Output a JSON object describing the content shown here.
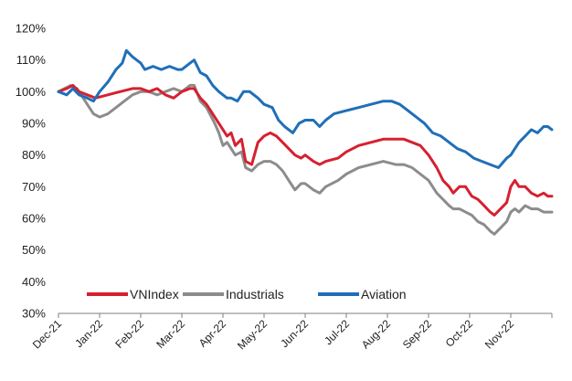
{
  "chart_data": {
    "type": "line",
    "title": "",
    "xlabel": "",
    "ylabel": "",
    "ylim": [
      30,
      120
    ],
    "y_unit": "%",
    "y_ticks": [
      "30%",
      "40%",
      "50%",
      "60%",
      "70%",
      "80%",
      "90%",
      "100%",
      "110%",
      "120%"
    ],
    "y_tick_values": [
      30,
      40,
      50,
      60,
      70,
      80,
      90,
      100,
      110,
      120
    ],
    "x_ticks": [
      "Dec-21",
      "Jan-22",
      "Feb-22",
      "Mar-22",
      "Apr-22",
      "May-22",
      "Jun-22",
      "Jul-22",
      "Aug-22",
      "Sep-22",
      "Oct-22",
      "Nov-22"
    ],
    "x_tick_values": [
      0,
      1,
      2,
      3,
      4,
      5,
      6,
      7,
      8,
      9,
      10,
      11
    ],
    "xlim": [
      0,
      12
    ],
    "grid": false,
    "legend_position": "bottom-left",
    "x_axis_note": "x values in months after Dec-21",
    "series": [
      {
        "name": "VNIndex",
        "color": "#d62030",
        "points": [
          [
            0.0,
            100
          ],
          [
            0.2,
            101
          ],
          [
            0.35,
            102
          ],
          [
            0.5,
            100
          ],
          [
            0.7,
            99
          ],
          [
            0.9,
            98
          ],
          [
            1.2,
            99
          ],
          [
            1.5,
            100
          ],
          [
            1.8,
            101
          ],
          [
            2.0,
            101
          ],
          [
            2.2,
            100
          ],
          [
            2.4,
            101
          ],
          [
            2.6,
            99
          ],
          [
            2.8,
            98
          ],
          [
            3.0,
            100
          ],
          [
            3.2,
            101
          ],
          [
            3.3,
            101
          ],
          [
            3.45,
            98
          ],
          [
            3.6,
            96
          ],
          [
            3.8,
            92
          ],
          [
            3.9,
            90
          ],
          [
            4.0,
            88
          ],
          [
            4.1,
            86
          ],
          [
            4.2,
            87
          ],
          [
            4.3,
            83
          ],
          [
            4.45,
            85
          ],
          [
            4.55,
            78
          ],
          [
            4.7,
            77
          ],
          [
            4.85,
            84
          ],
          [
            5.0,
            86
          ],
          [
            5.15,
            87
          ],
          [
            5.3,
            86
          ],
          [
            5.45,
            84
          ],
          [
            5.6,
            82
          ],
          [
            5.75,
            80
          ],
          [
            5.9,
            79
          ],
          [
            6.0,
            80
          ],
          [
            6.2,
            78
          ],
          [
            6.35,
            77
          ],
          [
            6.5,
            78
          ],
          [
            6.8,
            79
          ],
          [
            7.0,
            81
          ],
          [
            7.3,
            83
          ],
          [
            7.6,
            84
          ],
          [
            7.9,
            85
          ],
          [
            8.2,
            85
          ],
          [
            8.4,
            85
          ],
          [
            8.6,
            84
          ],
          [
            8.8,
            83
          ],
          [
            9.0,
            80
          ],
          [
            9.2,
            76
          ],
          [
            9.35,
            72
          ],
          [
            9.5,
            70
          ],
          [
            9.6,
            68
          ],
          [
            9.75,
            70
          ],
          [
            9.9,
            70
          ],
          [
            10.05,
            67
          ],
          [
            10.2,
            66
          ],
          [
            10.35,
            64
          ],
          [
            10.5,
            62
          ],
          [
            10.6,
            61
          ],
          [
            10.75,
            63
          ],
          [
            10.9,
            65
          ],
          [
            11.0,
            70
          ],
          [
            11.1,
            72
          ],
          [
            11.2,
            70
          ],
          [
            11.35,
            70
          ],
          [
            11.5,
            68
          ],
          [
            11.65,
            67
          ],
          [
            11.8,
            68
          ],
          [
            11.9,
            67
          ],
          [
            12.0,
            67
          ]
        ]
      },
      {
        "name": "Industrials",
        "color": "#8c8c8c",
        "points": [
          [
            0.0,
            100
          ],
          [
            0.15,
            101
          ],
          [
            0.3,
            102
          ],
          [
            0.45,
            101
          ],
          [
            0.55,
            99
          ],
          [
            0.7,
            96
          ],
          [
            0.85,
            93
          ],
          [
            1.0,
            92
          ],
          [
            1.2,
            93
          ],
          [
            1.4,
            95
          ],
          [
            1.6,
            97
          ],
          [
            1.8,
            99
          ],
          [
            2.0,
            100
          ],
          [
            2.2,
            100
          ],
          [
            2.4,
            99
          ],
          [
            2.6,
            100
          ],
          [
            2.8,
            101
          ],
          [
            3.0,
            100
          ],
          [
            3.2,
            102
          ],
          [
            3.3,
            102
          ],
          [
            3.45,
            97
          ],
          [
            3.6,
            95
          ],
          [
            3.8,
            90
          ],
          [
            3.9,
            87
          ],
          [
            4.0,
            83
          ],
          [
            4.1,
            84
          ],
          [
            4.2,
            82
          ],
          [
            4.3,
            80
          ],
          [
            4.45,
            81
          ],
          [
            4.55,
            76
          ],
          [
            4.7,
            75
          ],
          [
            4.85,
            77
          ],
          [
            5.0,
            78
          ],
          [
            5.15,
            78
          ],
          [
            5.3,
            77
          ],
          [
            5.45,
            75
          ],
          [
            5.6,
            72
          ],
          [
            5.75,
            69
          ],
          [
            5.9,
            71
          ],
          [
            6.0,
            71
          ],
          [
            6.2,
            69
          ],
          [
            6.35,
            68
          ],
          [
            6.5,
            70
          ],
          [
            6.8,
            72
          ],
          [
            7.0,
            74
          ],
          [
            7.3,
            76
          ],
          [
            7.6,
            77
          ],
          [
            7.9,
            78
          ],
          [
            8.2,
            77
          ],
          [
            8.4,
            77
          ],
          [
            8.6,
            76
          ],
          [
            8.8,
            74
          ],
          [
            9.0,
            72
          ],
          [
            9.2,
            68
          ],
          [
            9.35,
            66
          ],
          [
            9.5,
            64
          ],
          [
            9.6,
            63
          ],
          [
            9.75,
            63
          ],
          [
            9.9,
            62
          ],
          [
            10.05,
            61
          ],
          [
            10.2,
            59
          ],
          [
            10.35,
            58
          ],
          [
            10.5,
            56
          ],
          [
            10.6,
            55
          ],
          [
            10.75,
            57
          ],
          [
            10.9,
            59
          ],
          [
            11.0,
            62
          ],
          [
            11.1,
            63
          ],
          [
            11.2,
            62
          ],
          [
            11.35,
            64
          ],
          [
            11.5,
            63
          ],
          [
            11.65,
            63
          ],
          [
            11.8,
            62
          ],
          [
            11.9,
            62
          ],
          [
            12.0,
            62
          ]
        ]
      },
      {
        "name": "Aviation",
        "color": "#1f6fb8",
        "points": [
          [
            0.0,
            100
          ],
          [
            0.2,
            99
          ],
          [
            0.35,
            101
          ],
          [
            0.5,
            99
          ],
          [
            0.7,
            98
          ],
          [
            0.85,
            97
          ],
          [
            1.0,
            100
          ],
          [
            1.2,
            103
          ],
          [
            1.4,
            107
          ],
          [
            1.55,
            109
          ],
          [
            1.65,
            113
          ],
          [
            1.8,
            111
          ],
          [
            2.0,
            109
          ],
          [
            2.1,
            107
          ],
          [
            2.3,
            108
          ],
          [
            2.5,
            107
          ],
          [
            2.7,
            108
          ],
          [
            2.9,
            107
          ],
          [
            3.0,
            107
          ],
          [
            3.2,
            109
          ],
          [
            3.3,
            110
          ],
          [
            3.45,
            106
          ],
          [
            3.6,
            105
          ],
          [
            3.75,
            102
          ],
          [
            3.9,
            100
          ],
          [
            4.0,
            99
          ],
          [
            4.1,
            98
          ],
          [
            4.2,
            98
          ],
          [
            4.35,
            97
          ],
          [
            4.5,
            100
          ],
          [
            4.65,
            100
          ],
          [
            4.85,
            98
          ],
          [
            5.0,
            96
          ],
          [
            5.2,
            95
          ],
          [
            5.35,
            91
          ],
          [
            5.5,
            89
          ],
          [
            5.7,
            87
          ],
          [
            5.85,
            90
          ],
          [
            6.0,
            91
          ],
          [
            6.2,
            91
          ],
          [
            6.35,
            89
          ],
          [
            6.5,
            91
          ],
          [
            6.7,
            93
          ],
          [
            7.0,
            94
          ],
          [
            7.3,
            95
          ],
          [
            7.6,
            96
          ],
          [
            7.9,
            97
          ],
          [
            8.1,
            97
          ],
          [
            8.3,
            96
          ],
          [
            8.5,
            94
          ],
          [
            8.7,
            92
          ],
          [
            8.9,
            90
          ],
          [
            9.1,
            87
          ],
          [
            9.3,
            86
          ],
          [
            9.5,
            84
          ],
          [
            9.7,
            82
          ],
          [
            9.9,
            81
          ],
          [
            10.1,
            79
          ],
          [
            10.3,
            78
          ],
          [
            10.5,
            77
          ],
          [
            10.7,
            76
          ],
          [
            10.9,
            79
          ],
          [
            11.0,
            80
          ],
          [
            11.1,
            82
          ],
          [
            11.2,
            84
          ],
          [
            11.35,
            86
          ],
          [
            11.5,
            88
          ],
          [
            11.65,
            87
          ],
          [
            11.8,
            89
          ],
          [
            11.9,
            89
          ],
          [
            12.0,
            88
          ]
        ]
      }
    ]
  }
}
